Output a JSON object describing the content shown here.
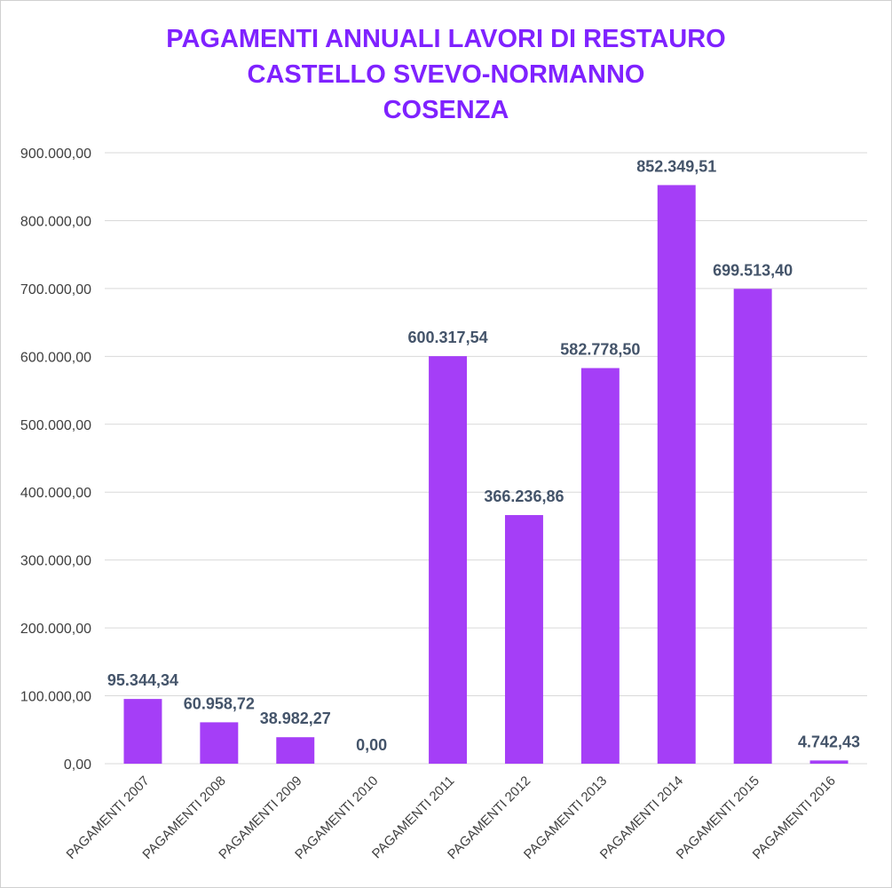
{
  "chart_data": {
    "type": "bar",
    "title_lines": [
      "PAGAMENTI ANNUALI LAVORI DI RESTAURO",
      "CASTELLO SVEVO-NORMANNO",
      "COSENZA"
    ],
    "categories": [
      "PAGAMENTI 2007",
      "PAGAMENTI 2008",
      "PAGAMENTI 2009",
      "PAGAMENTI 2010",
      "PAGAMENTI 2011",
      "PAGAMENTI 2012",
      "PAGAMENTI 2013",
      "PAGAMENTI 2014",
      "PAGAMENTI 2015",
      "PAGAMENTI 2016"
    ],
    "values": [
      95344.34,
      60958.72,
      38982.27,
      0,
      600317.54,
      366236.86,
      582778.5,
      852349.51,
      699513.4,
      4742.43
    ],
    "value_labels": [
      "95.344,34",
      "60.958,72",
      "38.982,27",
      "0,00",
      "600.317,54",
      "366.236,86",
      "582.778,50",
      "852.349,51",
      "699.513,40",
      "4.742,43"
    ],
    "ylim": [
      0,
      900000
    ],
    "yticks": [
      0,
      100000,
      200000,
      300000,
      400000,
      500000,
      600000,
      700000,
      800000,
      900000
    ],
    "ytick_labels": [
      "0,00",
      "100.000,00",
      "200.000,00",
      "300.000,00",
      "400.000,00",
      "500.000,00",
      "600.000,00",
      "700.000,00",
      "800.000,00",
      "900.000,00"
    ],
    "grid": true,
    "legend": "none",
    "xlabel": "",
    "ylabel": "",
    "colors": {
      "bar": "#a53ef7",
      "title": "#7f22ff",
      "data_label": "#44546a",
      "grid": "#d9d9d9",
      "axis_text": "#404040"
    }
  }
}
